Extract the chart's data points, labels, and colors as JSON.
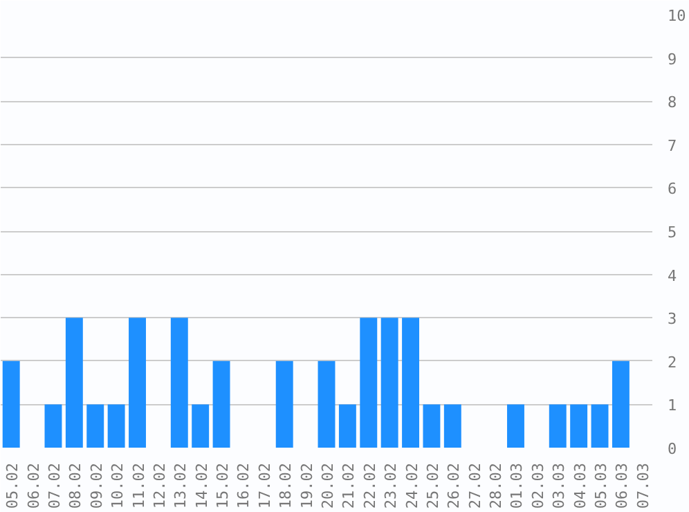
{
  "chart_data": {
    "type": "bar",
    "categories": [
      "05.02",
      "06.02",
      "07.02",
      "08.02",
      "09.02",
      "10.02",
      "11.02",
      "12.02",
      "13.02",
      "14.02",
      "15.02",
      "16.02",
      "17.02",
      "18.02",
      "19.02",
      "20.02",
      "21.02",
      "22.02",
      "23.02",
      "24.02",
      "25.02",
      "26.02",
      "27.02",
      "28.02",
      "01.03",
      "02.03",
      "03.03",
      "04.03",
      "05.03",
      "06.03",
      "07.03"
    ],
    "values": [
      2,
      0,
      1,
      3,
      1,
      1,
      3,
      0,
      3,
      1,
      2,
      0,
      0,
      2,
      0,
      2,
      1,
      3,
      3,
      3,
      1,
      1,
      0,
      0,
      1,
      0,
      1,
      1,
      1,
      2,
      0
    ],
    "color": "#1e90ff",
    "ylim": [
      0,
      10
    ],
    "yticks": [
      0,
      1,
      2,
      3,
      4,
      5,
      6,
      7,
      8,
      9,
      10
    ],
    "grid": "y"
  }
}
